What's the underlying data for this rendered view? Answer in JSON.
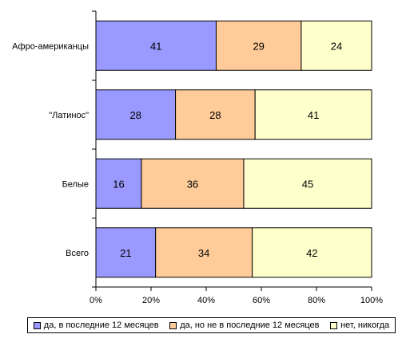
{
  "chart_data": {
    "type": "bar",
    "orientation": "horizontal",
    "stacked": "percent",
    "categories": [
      "Афро-американцы",
      "\"Латинос\"",
      "Белые",
      "Всего"
    ],
    "series": [
      {
        "name": "да, в последние 12 месяцев",
        "values": [
          41,
          28,
          16,
          21
        ],
        "color": "#9999ff"
      },
      {
        "name": "да, но не в последние 12 месяцев",
        "values": [
          29,
          28,
          36,
          34
        ],
        "color": "#ffcc99"
      },
      {
        "name": "нет, никогда",
        "values": [
          24,
          41,
          45,
          42
        ],
        "color": "#ffffcc"
      }
    ],
    "x_ticks": [
      "0%",
      "20%",
      "40%",
      "60%",
      "80%",
      "100%"
    ],
    "xlim": [
      0,
      100
    ],
    "grid": false,
    "legend_position": "bottom",
    "data_labels": true
  }
}
